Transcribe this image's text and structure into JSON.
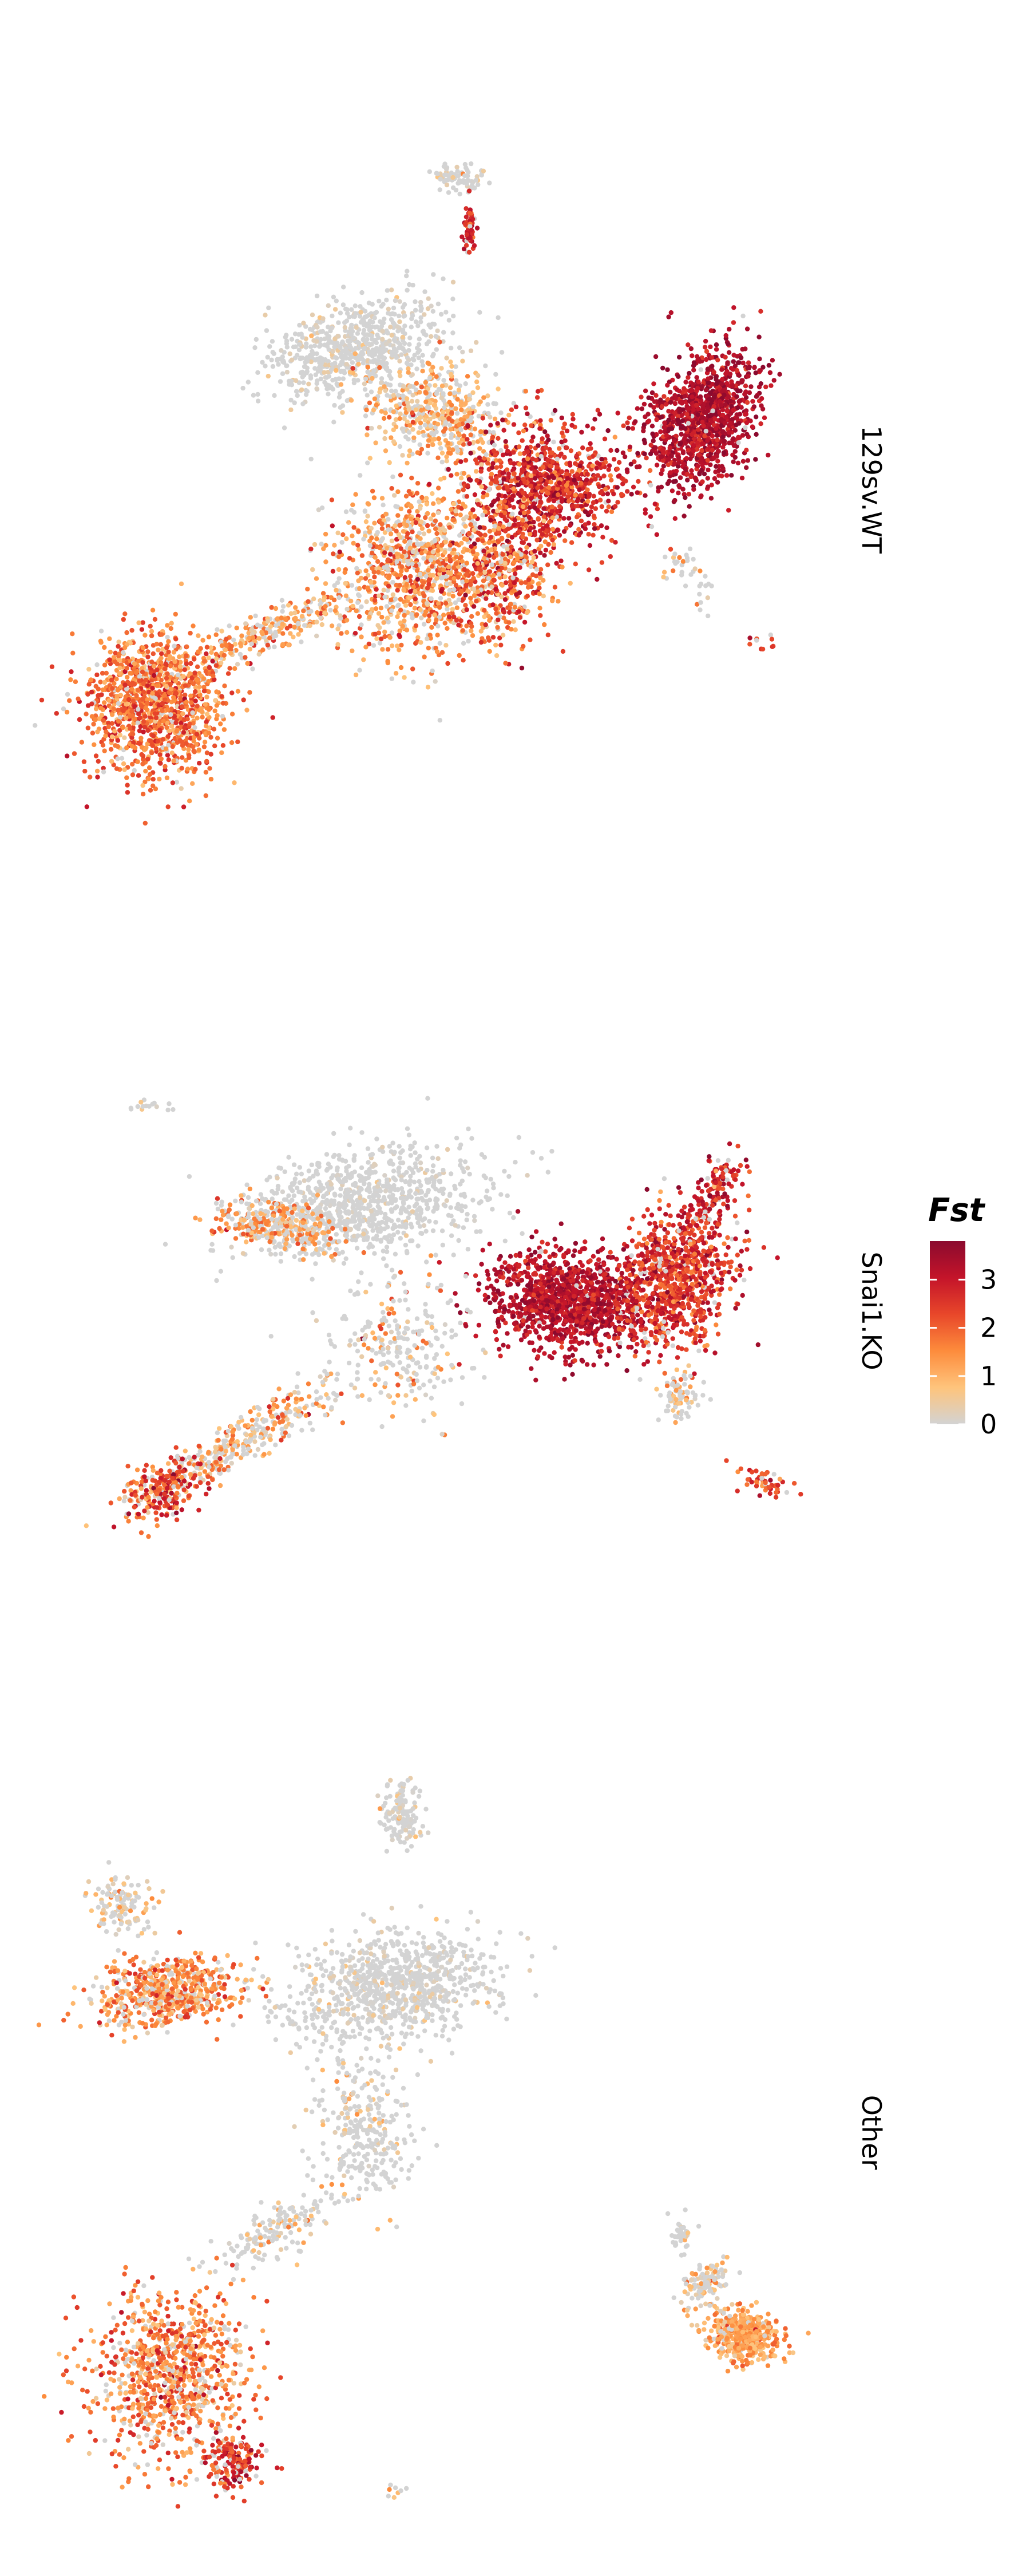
{
  "chart_data": {
    "type": "scatter",
    "subtype": "faceted UMAP feature plot",
    "panels": [
      {
        "label": "129sv.WT"
      },
      {
        "label": "Snai1.KO"
      },
      {
        "label": "Other"
      }
    ],
    "color_scale": {
      "title": "Fst",
      "range": [
        0,
        3.8
      ],
      "ticks": [
        0,
        1,
        2,
        3
      ],
      "tick_labels": [
        "0",
        "1",
        "2",
        "3"
      ],
      "colors": [
        "#d3d3d3",
        "#fec47c",
        "#fd8c3c",
        "#e8472a",
        "#c4142a",
        "#8b0a2e"
      ]
    },
    "legend_position": "right",
    "axes_visible": false,
    "grid": false
  }
}
